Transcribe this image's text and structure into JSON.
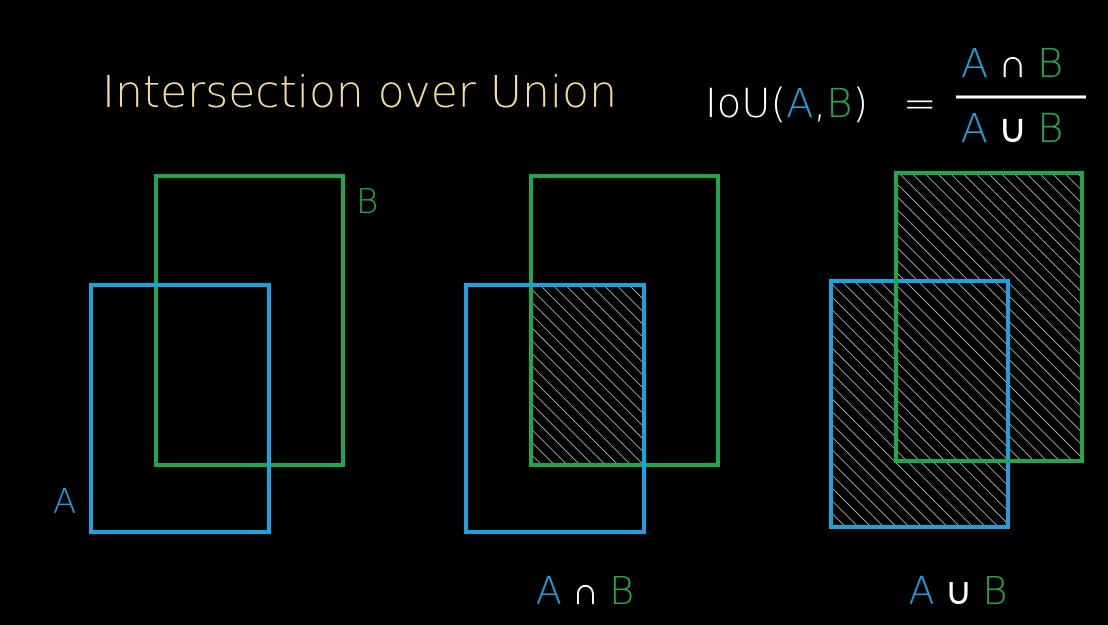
{
  "title": "Intersection over Union",
  "formula": {
    "lhs_prefix": "IoU(",
    "lhs_a": "A",
    "lhs_comma": ",",
    "lhs_b": "B",
    "lhs_suffix": ")",
    "equals": "=",
    "numerator": {
      "a": "A",
      "op": "∩",
      "b": "B"
    },
    "denominator": {
      "a": "A",
      "op": "∪",
      "b": "B"
    }
  },
  "panels": {
    "overlap": {
      "label_a": "A",
      "label_b": "B"
    },
    "intersection": {
      "caption": {
        "a": "A",
        "op": "∩",
        "b": "B"
      }
    },
    "union": {
      "caption": {
        "a": "A",
        "op": "∪",
        "b": "B"
      }
    }
  },
  "colors": {
    "background": "#000000",
    "title": "#f5dc9e",
    "box_a": "#1aa3e0",
    "box_b": "#22a64b",
    "text": "#ffffff",
    "hatch": "#ffffff"
  }
}
